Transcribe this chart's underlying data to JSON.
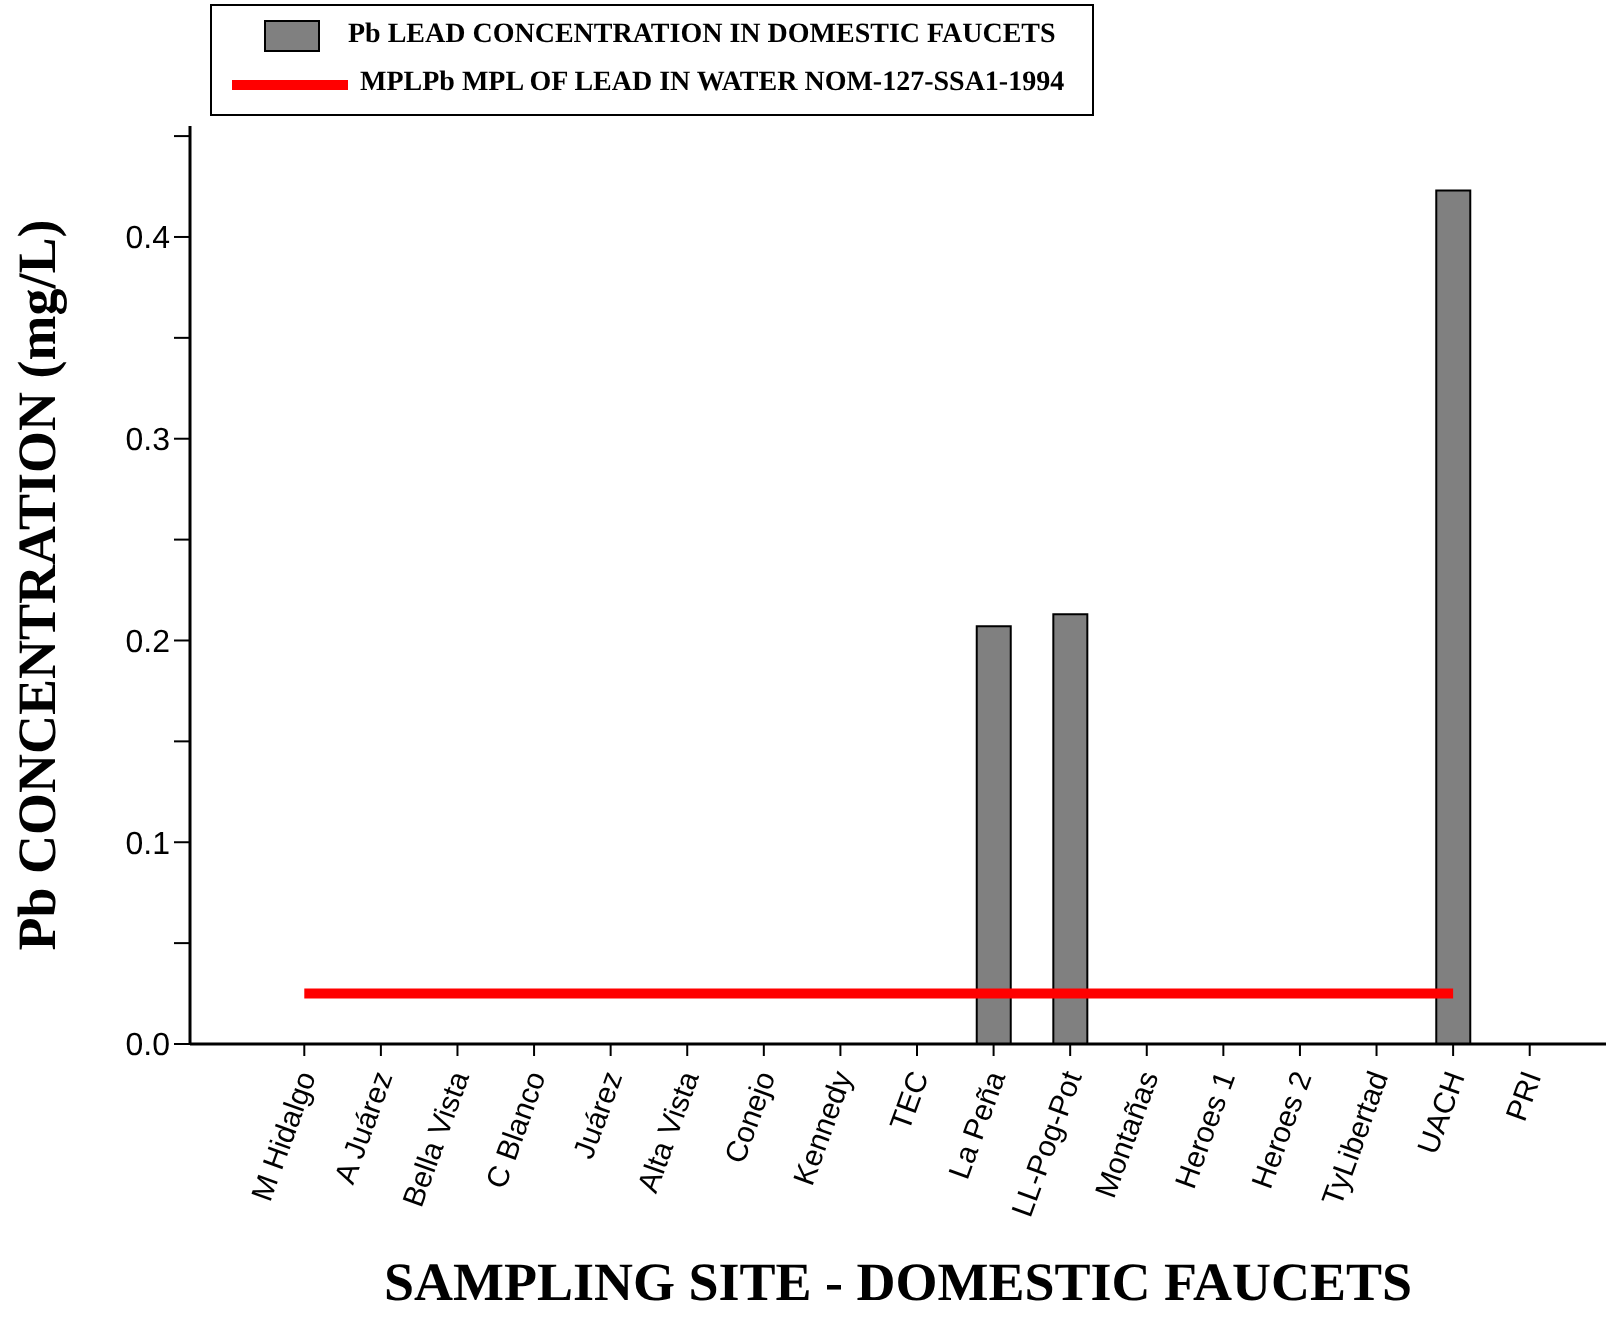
{
  "chart_data": {
    "type": "bar",
    "xlabel": "SAMPLING SITE - DOMESTIC FAUCETS",
    "ylabel": "Pb CONCENTRATION (mg/L)",
    "categories": [
      "M Hidalgo",
      "A Juárez",
      "Bella Vista",
      "C Blanco",
      "Juárez",
      "Alta Vista",
      "Conejo",
      "Kennedy",
      "TEC",
      "La Peña",
      "LL-Pog-Pot",
      "Montañas",
      "Heroes 1",
      "Heroes 2",
      "TyLibertad",
      "UACH",
      "PRI"
    ],
    "series": [
      {
        "name": "Pb LEAD CONCENTRATION IN DOMESTIC FAUCETS",
        "color": "#808080",
        "values": [
          0,
          0,
          0,
          0,
          0,
          0,
          0,
          0,
          0,
          0.207,
          0.213,
          0,
          0,
          0,
          0,
          0.423,
          0
        ]
      },
      {
        "name": "MPLPb MPL OF LEAD IN WATER NOM-127-SSA1-1994",
        "type": "line",
        "color": "#ff0000",
        "values": [
          0.025,
          0.025,
          0.025,
          0.025,
          0.025,
          0.025,
          0.025,
          0.025,
          0.025,
          0.025,
          0.025,
          0.025,
          0.025,
          0.025,
          0.025,
          0.025,
          null
        ]
      }
    ],
    "ylim": [
      0,
      0.455
    ],
    "yticks": [
      {
        "value": 0,
        "label": "0.0"
      },
      {
        "value": 0.05,
        "label": null
      },
      0.1,
      {
        "value": 0.15,
        "label": null
      },
      0.2,
      {
        "value": 0.25,
        "label": null
      },
      0.3,
      {
        "value": 0.35,
        "label": null
      },
      0.4,
      {
        "value": 0.45,
        "label": null
      }
    ],
    "grid": false,
    "legend": "top",
    "marker": "none",
    "line_style": "solid"
  }
}
